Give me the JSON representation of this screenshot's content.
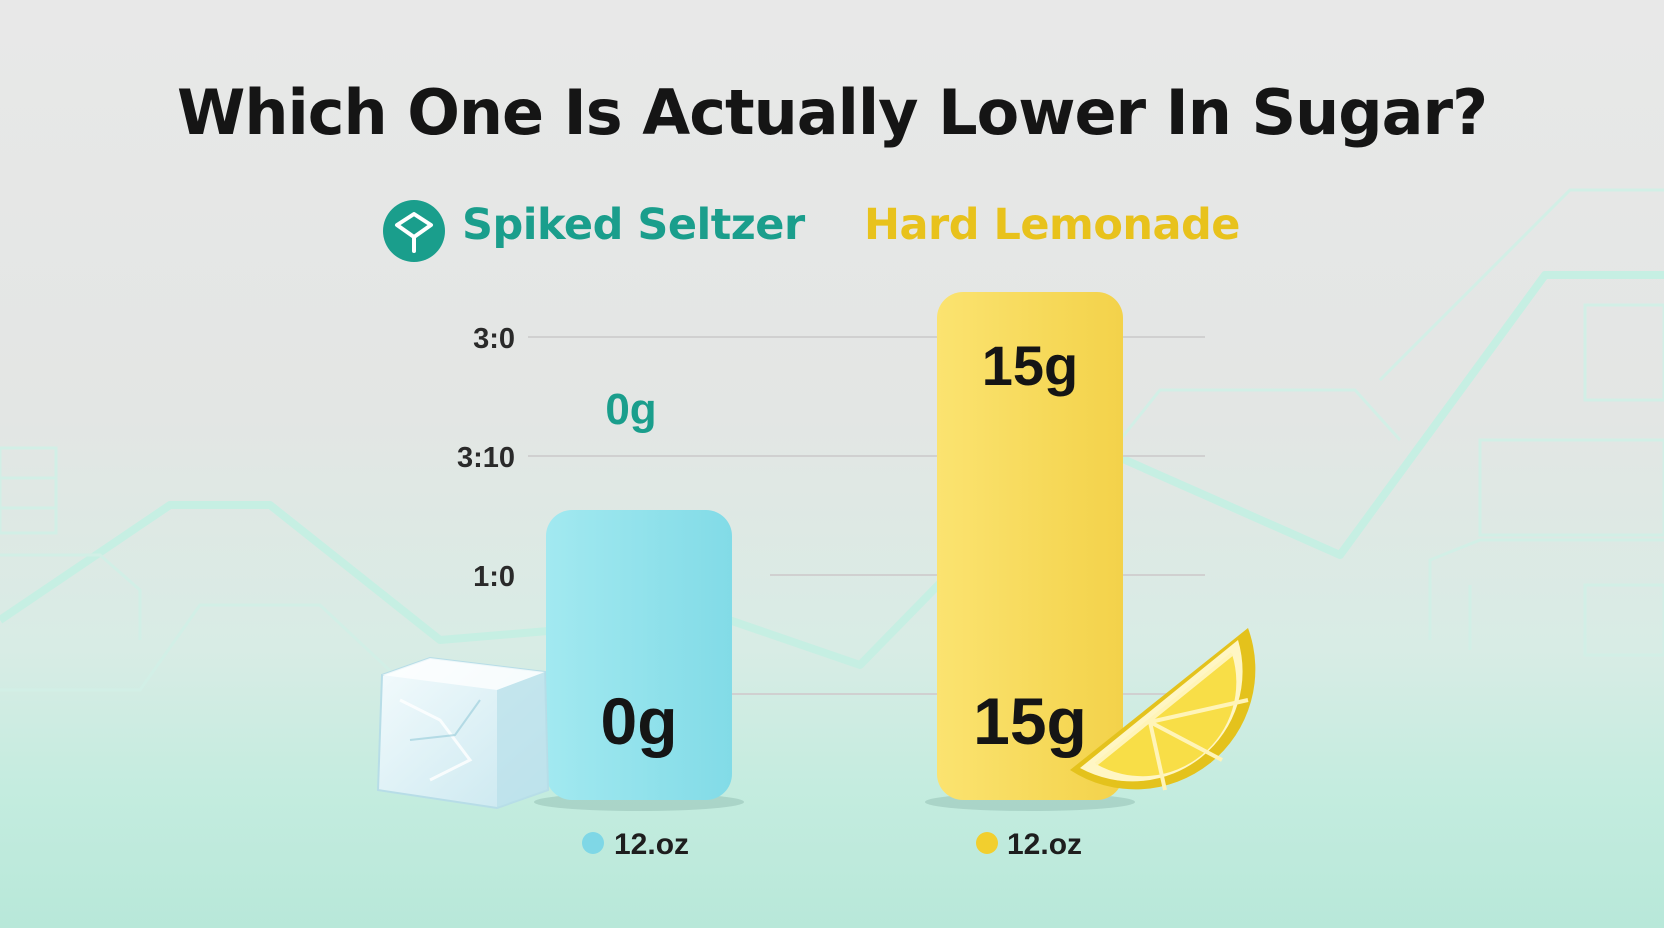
{
  "title": "Which One Is Actually Lower In Sugar?",
  "legend": {
    "seltzer": "Spiked Seltzer",
    "lemonade": "Hard Lemonade"
  },
  "colors": {
    "seltzer_bar": "#8fe0ea",
    "lemonade_bar": "#f7d957",
    "seltzer_text": "#1a9e8c",
    "lemonade_text": "#e8c21c",
    "seltzer_dot": "#7fd7e6",
    "lemonade_dot": "#f2cf2e"
  },
  "icons": [
    "glass-logo-icon",
    "ice-cube-icon",
    "lemon-slice-icon",
    "seltzer-dot-icon",
    "lemonade-dot-icon"
  ],
  "chart_data": {
    "type": "bar",
    "categories": [
      "Spiked Seltzer",
      "Hard Lemonade"
    ],
    "values": [
      0,
      15
    ],
    "unit": "g",
    "value_labels": [
      "0g",
      "15g"
    ],
    "inner_labels": [
      "0g",
      "15g"
    ],
    "serving_labels": [
      "12.oz",
      "12.oz"
    ],
    "y_tick_labels": [
      "3:0",
      "3:10",
      "1:0"
    ],
    "ylim": [
      0,
      15
    ],
    "grid": true,
    "legend_position": "top"
  }
}
